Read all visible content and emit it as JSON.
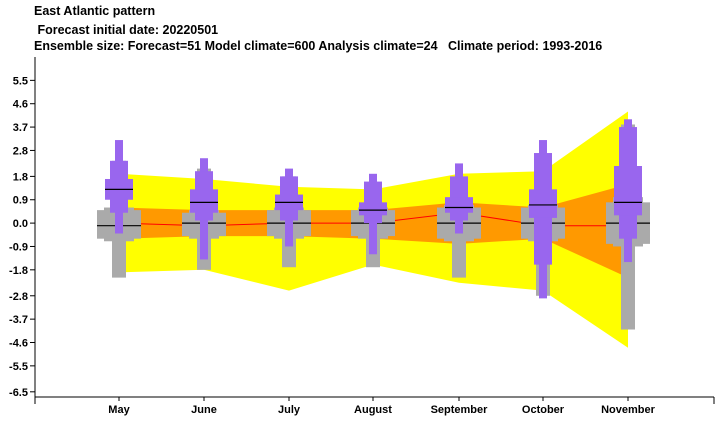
{
  "header": {
    "title": "East Atlantic pattern",
    "initial_date": " Forecast initial date: 20220501",
    "ensemble_info": "Ensemble size: Forecast=51 Model climate=600 Analysis climate=24   Climate period: 1993-2016"
  },
  "colors": {
    "outer_band": "#ffff00",
    "inner_band": "#ff9900",
    "median_line": "#ff0000",
    "forecast_box": "#9966ee",
    "climate_box": "#aaaaaa"
  },
  "chart_data": {
    "type": "box",
    "categories": [
      "May",
      "June",
      "July",
      "August",
      "September",
      "October",
      "November"
    ],
    "yticks": [
      "5.5",
      "4.6",
      "3.7",
      "2.8",
      "1.8",
      "0.9",
      "0.0",
      "-0.9",
      "-1.8",
      "-2.8",
      "-3.7",
      "-4.6",
      "-5.5",
      "-6.5"
    ],
    "ylim": [
      -6.7,
      6.4
    ],
    "climate_band_outer": {
      "upper": [
        1.9,
        1.7,
        1.4,
        1.3,
        1.9,
        2.0,
        4.3
      ],
      "lower": [
        -1.9,
        -1.8,
        -2.6,
        -1.6,
        -2.3,
        -2.6,
        -4.8
      ]
    },
    "climate_band_inner": {
      "upper": [
        0.6,
        0.5,
        0.5,
        0.5,
        0.8,
        0.6,
        1.5
      ],
      "lower": [
        -0.6,
        -0.5,
        -0.5,
        -0.6,
        -0.8,
        -0.6,
        -2.1
      ]
    },
    "climate_median": [
      0.0,
      -0.1,
      0.0,
      0.0,
      0.4,
      -0.1,
      -0.1
    ],
    "forecast": [
      {
        "min": -0.4,
        "p10": 0.4,
        "p25": 0.9,
        "median": 1.3,
        "p75": 1.7,
        "p90": 2.4,
        "max": 3.2
      },
      {
        "min": -1.4,
        "p10": 0.1,
        "p25": 0.4,
        "median": 0.8,
        "p75": 1.3,
        "p90": 2.0,
        "max": 2.5
      },
      {
        "min": -0.9,
        "p10": 0.1,
        "p25": 0.5,
        "median": 0.8,
        "p75": 1.1,
        "p90": 1.8,
        "max": 2.1
      },
      {
        "min": -1.2,
        "p10": 0.0,
        "p25": 0.3,
        "median": 0.5,
        "p75": 0.8,
        "p90": 1.6,
        "max": 1.9
      },
      {
        "min": -0.4,
        "p10": 0.1,
        "p25": 0.4,
        "median": 0.6,
        "p75": 1.0,
        "p90": 1.8,
        "max": 2.3
      },
      {
        "min": -2.9,
        "p10": -1.6,
        "p25": 0.2,
        "median": 0.7,
        "p75": 1.3,
        "p90": 2.7,
        "max": 3.2
      },
      {
        "min": -1.5,
        "p10": -0.6,
        "p25": 0.3,
        "median": 0.8,
        "p75": 2.2,
        "p90": 3.7,
        "max": 4.0
      }
    ],
    "model_climate": [
      {
        "min": -2.1,
        "p10": -0.7,
        "p25": -0.6,
        "median": -0.1,
        "p75": 0.5,
        "p90": 0.6,
        "max": 2.4
      },
      {
        "min": -1.8,
        "p10": -0.6,
        "p25": -0.5,
        "median": 0.0,
        "p75": 0.4,
        "p90": 0.5,
        "max": 2.1
      },
      {
        "min": -1.7,
        "p10": -0.6,
        "p25": -0.5,
        "median": 0.0,
        "p75": 0.5,
        "p90": 0.6,
        "max": 1.8
      },
      {
        "min": -1.7,
        "p10": -0.6,
        "p25": -0.5,
        "median": 0.0,
        "p75": 0.5,
        "p90": 0.6,
        "max": 1.4
      },
      {
        "min": -2.1,
        "p10": -0.7,
        "p25": -0.6,
        "median": 0.0,
        "p75": 0.6,
        "p90": 0.7,
        "max": 1.4
      },
      {
        "min": -2.8,
        "p10": -0.7,
        "p25": -0.6,
        "median": 0.0,
        "p75": 0.6,
        "p90": 0.7,
        "max": 2.5
      },
      {
        "min": -4.1,
        "p10": -0.9,
        "p25": -0.8,
        "median": 0.0,
        "p75": 0.8,
        "p90": 1.0,
        "max": 3.8
      }
    ]
  }
}
